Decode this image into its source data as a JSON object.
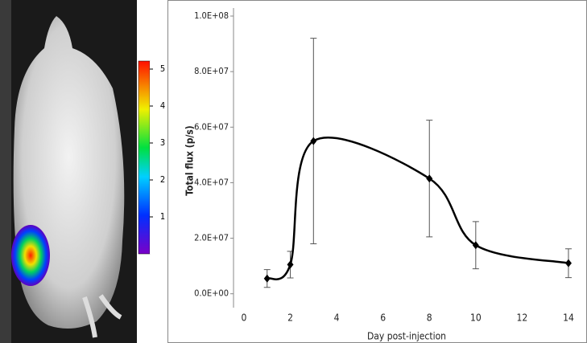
{
  "colorbar_labels": [
    "5",
    "4",
    "3",
    "2",
    "1"
  ],
  "chart_data": {
    "type": "line",
    "x_label": "Day post-injection",
    "y_label": "Total flux (p/s)",
    "x": [
      1,
      2,
      3,
      8,
      10,
      14
    ],
    "series": [
      {
        "color": "#000000",
        "values": [
          5500000,
          10500000,
          55000000,
          41500000,
          17500000,
          11000000
        ],
        "errors": [
          3200000,
          4800000,
          37000000,
          21000000,
          8500000,
          5200000
        ]
      }
    ],
    "xlim": [
      -0.45,
      14.8
    ],
    "xticks": [
      0,
      2,
      4,
      6,
      8,
      10,
      12,
      14
    ],
    "ylim": [
      -5000000,
      100000000
    ],
    "yticks": [
      {
        "value": 0,
        "label": "0.0E+00"
      },
      {
        "value": 20000000,
        "label": "2.0E+07"
      },
      {
        "value": 40000000,
        "label": "4.0E+07"
      },
      {
        "value": 60000000,
        "label": "6.0E+07"
      },
      {
        "value": 80000000,
        "label": "8.0E+07"
      },
      {
        "value": 100000000,
        "label": "1.0E+08"
      }
    ],
    "grid": false
  }
}
